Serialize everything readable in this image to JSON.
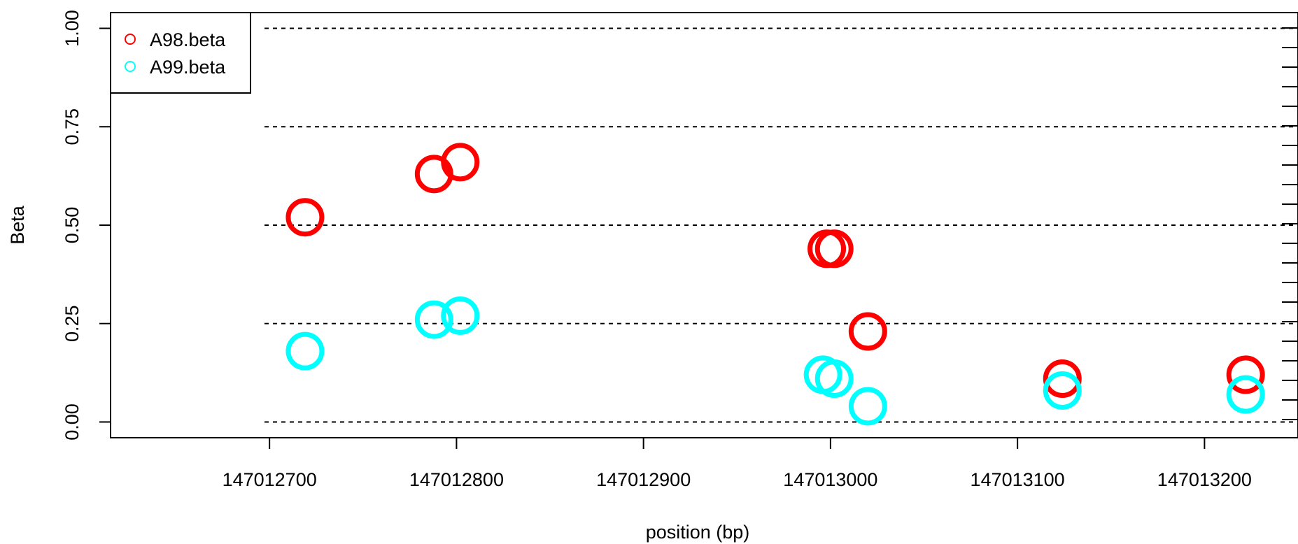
{
  "chart_data": {
    "type": "scatter",
    "xlabel": "position (bp)",
    "ylabel": "Beta",
    "xlim": [
      147012615,
      147013250
    ],
    "ylim": [
      -0.04,
      1.04
    ],
    "x_ticks": [
      147012700,
      147012800,
      147012900,
      147013000,
      147013100,
      147013200
    ],
    "x_tick_labels": [
      "147012700",
      "147012800",
      "147012900",
      "147013000",
      "147013100",
      "147013200"
    ],
    "y_ticks": [
      0,
      0.25,
      0.5,
      0.75,
      1
    ],
    "y_tick_labels": [
      "0.00",
      "0.25",
      "0.50",
      "0.75",
      "1.00"
    ],
    "reference_lines": [
      0,
      0.25,
      0.5,
      0.75,
      1
    ],
    "legend_position": "top-left",
    "series": [
      {
        "name": "A98.beta",
        "color": "#ff0000",
        "points": [
          {
            "x": 147012719,
            "y": 0.52
          },
          {
            "x": 147012788,
            "y": 0.63
          },
          {
            "x": 147012802,
            "y": 0.66
          },
          {
            "x": 147012998,
            "y": 0.44
          },
          {
            "x": 147013002,
            "y": 0.44
          },
          {
            "x": 147013020,
            "y": 0.23
          },
          {
            "x": 147013124,
            "y": 0.11
          },
          {
            "x": 147013222,
            "y": 0.12
          }
        ]
      },
      {
        "name": "A99.beta",
        "color": "#00ffff",
        "points": [
          {
            "x": 147012719,
            "y": 0.18
          },
          {
            "x": 147012788,
            "y": 0.26
          },
          {
            "x": 147012802,
            "y": 0.27
          },
          {
            "x": 147012996,
            "y": 0.12
          },
          {
            "x": 147013002,
            "y": 0.11
          },
          {
            "x": 147013020,
            "y": 0.04
          },
          {
            "x": 147013124,
            "y": 0.08
          },
          {
            "x": 147013222,
            "y": 0.07
          }
        ]
      }
    ]
  }
}
